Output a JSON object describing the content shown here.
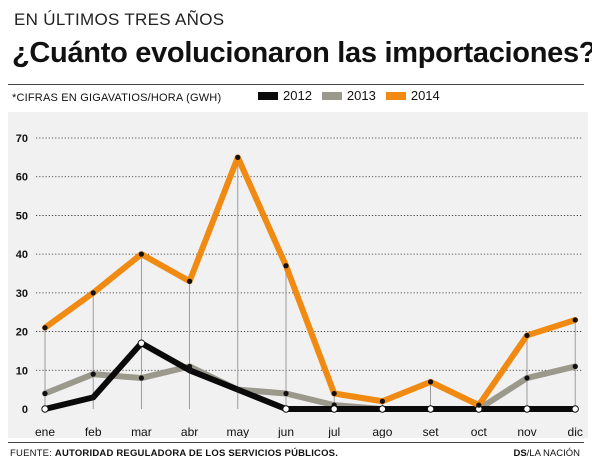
{
  "header": {
    "kicker": "EN ÚLTIMOS TRES AÑOS",
    "title": "¿Cuánto evolucionaron las importaciones?"
  },
  "note": "*CIFRAS EN GIGAVATIOS/HORA (GWH)",
  "footer": {
    "source_label": "FUENTE:",
    "source_text": "AUTORIDAD REGULADORA DE LOS SERVICIOS PÚBLICOS.",
    "credit_bold": "DS",
    "credit_rest": "/LA NACIÓN"
  },
  "colors": {
    "2012": "#0a0a0a",
    "2013": "#9b998c",
    "2014": "#f08a12",
    "plot_background": "#f1f1f1"
  },
  "chart_data": {
    "type": "line",
    "categories": [
      "ene",
      "feb",
      "mar",
      "abr",
      "may",
      "jun",
      "jul",
      "ago",
      "set",
      "oct",
      "nov",
      "dic"
    ],
    "series": [
      {
        "name": "2012",
        "values": [
          0,
          3,
          17,
          10,
          5,
          0,
          0,
          0,
          0,
          0,
          0,
          0
        ]
      },
      {
        "name": "2013",
        "values": [
          4,
          9,
          8,
          11,
          5,
          4,
          1,
          0,
          0,
          0,
          8,
          11
        ]
      },
      {
        "name": "2014",
        "values": [
          21,
          30,
          40,
          33,
          65,
          37,
          4,
          2,
          7,
          1,
          19,
          23
        ]
      }
    ],
    "yticks": [
      0,
      10,
      20,
      30,
      40,
      50,
      60,
      70
    ],
    "ylim": [
      0,
      70
    ],
    "grid": "dotted horizontal",
    "legend": "top"
  }
}
